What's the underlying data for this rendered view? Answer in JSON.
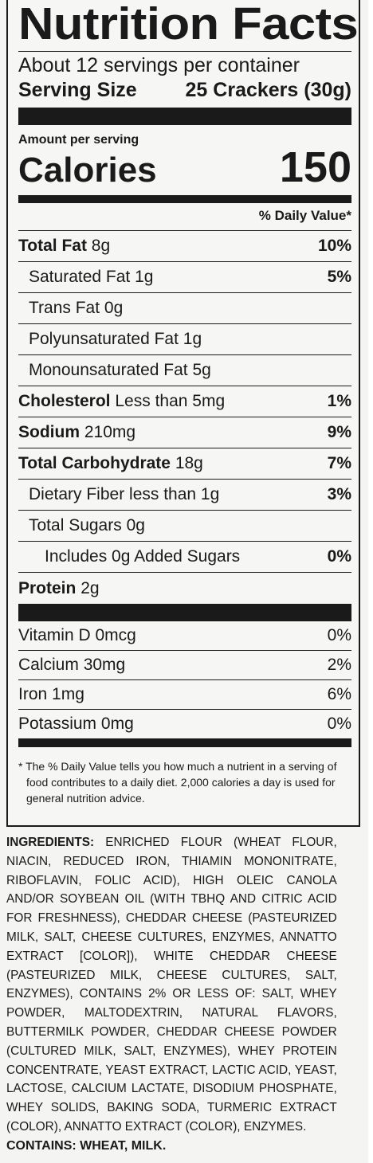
{
  "title": "Nutrition Facts",
  "servings_per_container": "About 12 servings per container",
  "serving_size": {
    "label": "Serving Size",
    "value": "25 Crackers (30g)"
  },
  "amount_per_serving": "Amount per serving",
  "calories": {
    "label": "Calories",
    "value": "150"
  },
  "daily_value_header": "% Daily Value*",
  "nutrients": [
    {
      "name": "Total Fat",
      "amount": "8g",
      "dv": "10%"
    },
    {
      "name": "Saturated Fat",
      "amount": "1g",
      "dv": "5%"
    },
    {
      "name": "Trans Fat",
      "amount": "0g",
      "dv": ""
    },
    {
      "name": "Polyunsaturated Fat",
      "amount": "1g",
      "dv": ""
    },
    {
      "name": "Monounsaturated Fat",
      "amount": "5g",
      "dv": ""
    },
    {
      "name": "Cholesterol",
      "amount": "Less than 5mg",
      "dv": "1%"
    },
    {
      "name": "Sodium",
      "amount": "210mg",
      "dv": "9%"
    },
    {
      "name": "Total Carbohydrate",
      "amount": "18g",
      "dv": "7%"
    },
    {
      "name": "Dietary Fiber",
      "amount": "less than 1g",
      "dv": "3%"
    },
    {
      "name": "Total Sugars",
      "amount": "0g",
      "dv": ""
    },
    {
      "name": "Includes 0g Added Sugars",
      "amount": "",
      "dv": "0%"
    },
    {
      "name": "Protein",
      "amount": "2g",
      "dv": ""
    }
  ],
  "vitamins": [
    {
      "name": "Vitamin D",
      "amount": "0mcg",
      "dv": "0%"
    },
    {
      "name": "Calcium",
      "amount": "30mg",
      "dv": "2%"
    },
    {
      "name": "Iron",
      "amount": "1mg",
      "dv": "6%"
    },
    {
      "name": "Potassium",
      "amount": "0mg",
      "dv": "0%"
    }
  ],
  "footnote": "* The % Daily Value tells you how much a nutrient in a serving of food contributes to a daily diet. 2,000 calories a day is used for general nutrition advice.",
  "ingredients": {
    "label": "INGREDIENTS:",
    "text": "ENRICHED FLOUR (WHEAT FLOUR, NIACIN, REDUCED IRON, THIAMIN MONONITRATE, RIBOFLAVIN, FOLIC ACID), HIGH OLEIC CANOLA AND/OR SOYBEAN OIL (WITH TBHQ AND CITRIC ACID FOR FRESHNESS), CHEDDAR CHEESE (PASTEURIZED MILK, SALT, CHEESE CULTURES, ENZYMES, ANNATTO EXTRACT [COLOR]), WHITE CHEDDAR CHEESE (PASTEURIZED MILK, CHEESE CULTURES, SALT, ENZYMES), CONTAINS 2% OR LESS OF: SALT, WHEY POWDER, MALTODEXTRIN, NATURAL FLAVORS, BUTTERMILK POWDER, CHEDDAR CHEESE POWDER (CULTURED MILK, SALT, ENZYMES), WHEY PROTEIN CONCENTRATE, YEAST EXTRACT, LACTIC ACID, YEAST, LACTOSE, CALCIUM LACTATE, DISODIUM PHOSPHATE, WHEY SOLIDS, BAKING SODA, TURMERIC EXTRACT (COLOR), ANNATTO EXTRACT (COLOR), ENZYMES."
  },
  "contains": "CONTAINS: WHEAT, MILK."
}
